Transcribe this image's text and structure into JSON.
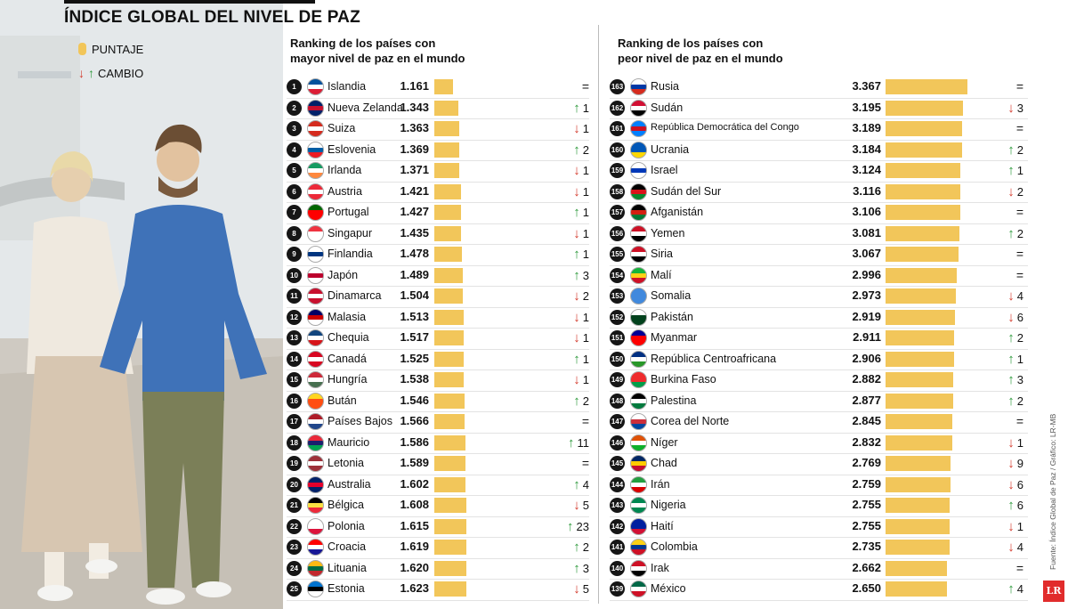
{
  "title": "ÍNDICE GLOBAL DEL NIVEL DE PAZ",
  "legend": {
    "score_label": "PUNTAJE",
    "change_label": "CAMBIO",
    "up_arrow": "↑",
    "down_arrow": "↓"
  },
  "source": "Fuente: Índice Global de Paz / Gráfico: LR-MB",
  "logo": "LR",
  "colors": {
    "bar": "#f2c65a",
    "up": "#2e9a3c",
    "down": "#d33a2c",
    "rank_badge": "#161616"
  },
  "chart_data": [
    {
      "type": "bar",
      "title": "Ranking de los países con mayor nivel de paz en el mundo",
      "rows": [
        {
          "rank": "1",
          "country": "Islandia",
          "score": 1.161,
          "score_text": "1.161",
          "dir": "=",
          "change": "",
          "flag": [
            "#02529C",
            "#ffffff",
            "#DC1E35"
          ]
        },
        {
          "rank": "2",
          "country": "Nueva Zelanda",
          "score": 1.343,
          "score_text": "1.343",
          "dir": "up",
          "change": "1",
          "flag": [
            "#012169",
            "#C8102E",
            "#012169"
          ]
        },
        {
          "rank": "3",
          "country": "Suiza",
          "score": 1.363,
          "score_text": "1.363",
          "dir": "down",
          "change": "1",
          "flag": [
            "#D52B1E",
            "#ffffff",
            "#D52B1E"
          ]
        },
        {
          "rank": "4",
          "country": "Eslovenia",
          "score": 1.369,
          "score_text": "1.369",
          "dir": "up",
          "change": "2",
          "flag": [
            "#ffffff",
            "#005DA4",
            "#ED1C24"
          ]
        },
        {
          "rank": "5",
          "country": "Irlanda",
          "score": 1.371,
          "score_text": "1.371",
          "dir": "down",
          "change": "1",
          "flag": [
            "#169B62",
            "#ffffff",
            "#FF883E"
          ]
        },
        {
          "rank": "6",
          "country": "Austria",
          "score": 1.421,
          "score_text": "1.421",
          "dir": "down",
          "change": "1",
          "flag": [
            "#ED2939",
            "#ffffff",
            "#ED2939"
          ]
        },
        {
          "rank": "7",
          "country": "Portugal",
          "score": 1.427,
          "score_text": "1.427",
          "dir": "up",
          "change": "1",
          "flag": [
            "#006600",
            "#FF0000",
            "#FF0000"
          ]
        },
        {
          "rank": "8",
          "country": "Singapur",
          "score": 1.435,
          "score_text": "1.435",
          "dir": "down",
          "change": "1",
          "flag": [
            "#EF3340",
            "#ffffff",
            "#ffffff"
          ]
        },
        {
          "rank": "9",
          "country": "Finlandia",
          "score": 1.478,
          "score_text": "1.478",
          "dir": "up",
          "change": "1",
          "flag": [
            "#ffffff",
            "#003580",
            "#ffffff"
          ]
        },
        {
          "rank": "10",
          "country": "Japón",
          "score": 1.489,
          "score_text": "1.489",
          "dir": "up",
          "change": "3",
          "flag": [
            "#ffffff",
            "#BC002D",
            "#ffffff"
          ]
        },
        {
          "rank": "11",
          "country": "Dinamarca",
          "score": 1.504,
          "score_text": "1.504",
          "dir": "down",
          "change": "2",
          "flag": [
            "#C8102E",
            "#ffffff",
            "#C8102E"
          ]
        },
        {
          "rank": "12",
          "country": "Malasia",
          "score": 1.513,
          "score_text": "1.513",
          "dir": "down",
          "change": "1",
          "flag": [
            "#010066",
            "#CC0001",
            "#ffffff"
          ]
        },
        {
          "rank": "13",
          "country": "Chequia",
          "score": 1.517,
          "score_text": "1.517",
          "dir": "down",
          "change": "1",
          "flag": [
            "#11457E",
            "#ffffff",
            "#D7141A"
          ]
        },
        {
          "rank": "14",
          "country": "Canadá",
          "score": 1.525,
          "score_text": "1.525",
          "dir": "up",
          "change": "1",
          "flag": [
            "#D80621",
            "#ffffff",
            "#D80621"
          ]
        },
        {
          "rank": "15",
          "country": "Hungría",
          "score": 1.538,
          "score_text": "1.538",
          "dir": "down",
          "change": "1",
          "flag": [
            "#CE2939",
            "#ffffff",
            "#477050"
          ]
        },
        {
          "rank": "16",
          "country": "Bután",
          "score": 1.546,
          "score_text": "1.546",
          "dir": "up",
          "change": "2",
          "flag": [
            "#FFD520",
            "#FF4E12",
            "#FF4E12"
          ]
        },
        {
          "rank": "17",
          "country": "Países Bajos",
          "score": 1.566,
          "score_text": "1.566",
          "dir": "=",
          "change": "",
          "flag": [
            "#AE1C28",
            "#ffffff",
            "#21468B"
          ]
        },
        {
          "rank": "18",
          "country": "Mauricio",
          "score": 1.586,
          "score_text": "1.586",
          "dir": "up",
          "change": "11",
          "flag": [
            "#EA2839",
            "#1A206D",
            "#00A551"
          ]
        },
        {
          "rank": "19",
          "country": "Letonia",
          "score": 1.589,
          "score_text": "1.589",
          "dir": "=",
          "change": "",
          "flag": [
            "#9E3039",
            "#ffffff",
            "#9E3039"
          ]
        },
        {
          "rank": "20",
          "country": "Australia",
          "score": 1.602,
          "score_text": "1.602",
          "dir": "up",
          "change": "4",
          "flag": [
            "#012169",
            "#E4002B",
            "#012169"
          ]
        },
        {
          "rank": "21",
          "country": "Bélgica",
          "score": 1.608,
          "score_text": "1.608",
          "dir": "down",
          "change": "5",
          "flag": [
            "#000000",
            "#FAE042",
            "#ED2939"
          ]
        },
        {
          "rank": "22",
          "country": "Polonia",
          "score": 1.615,
          "score_text": "1.615",
          "dir": "up",
          "change": "23",
          "flag": [
            "#ffffff",
            "#ffffff",
            "#DC143C"
          ]
        },
        {
          "rank": "23",
          "country": "Croacia",
          "score": 1.619,
          "score_text": "1.619",
          "dir": "up",
          "change": "2",
          "flag": [
            "#FF0000",
            "#ffffff",
            "#171796"
          ]
        },
        {
          "rank": "24",
          "country": "Lituania",
          "score": 1.62,
          "score_text": "1.620",
          "dir": "up",
          "change": "3",
          "flag": [
            "#FDB913",
            "#006A44",
            "#C1272D"
          ]
        },
        {
          "rank": "25",
          "country": "Estonia",
          "score": 1.623,
          "score_text": "1.623",
          "dir": "down",
          "change": "5",
          "flag": [
            "#0072CE",
            "#000000",
            "#ffffff"
          ]
        }
      ]
    },
    {
      "type": "bar",
      "title": "Ranking de los países con peor nivel de paz en el mundo",
      "rows": [
        {
          "rank": "163",
          "country": "Rusia",
          "score": 3.367,
          "score_text": "3.367",
          "dir": "=",
          "change": "",
          "flag": [
            "#ffffff",
            "#0039A6",
            "#D52B1E"
          ]
        },
        {
          "rank": "162",
          "country": "Sudán",
          "score": 3.195,
          "score_text": "3.195",
          "dir": "down",
          "change": "3",
          "flag": [
            "#D21034",
            "#ffffff",
            "#000000"
          ]
        },
        {
          "rank": "161",
          "country": "República Democrática del Congo",
          "score": 3.189,
          "score_text": "3.189",
          "dir": "=",
          "change": "",
          "flag": [
            "#007FFF",
            "#CE1021",
            "#007FFF"
          ]
        },
        {
          "rank": "160",
          "country": "Ucrania",
          "score": 3.184,
          "score_text": "3.184",
          "dir": "up",
          "change": "2",
          "flag": [
            "#0057B7",
            "#0057B7",
            "#FFD700"
          ]
        },
        {
          "rank": "159",
          "country": "Israel",
          "score": 3.124,
          "score_text": "3.124",
          "dir": "up",
          "change": "1",
          "flag": [
            "#ffffff",
            "#0038B8",
            "#ffffff"
          ]
        },
        {
          "rank": "158",
          "country": "Sudán del Sur",
          "score": 3.116,
          "score_text": "3.116",
          "dir": "down",
          "change": "2",
          "flag": [
            "#000000",
            "#DA121A",
            "#078930"
          ]
        },
        {
          "rank": "157",
          "country": "Afganistán",
          "score": 3.106,
          "score_text": "3.106",
          "dir": "=",
          "change": "",
          "flag": [
            "#000000",
            "#D32011",
            "#007A36"
          ]
        },
        {
          "rank": "156",
          "country": "Yemen",
          "score": 3.081,
          "score_text": "3.081",
          "dir": "up",
          "change": "2",
          "flag": [
            "#CE1126",
            "#ffffff",
            "#000000"
          ]
        },
        {
          "rank": "155",
          "country": "Siria",
          "score": 3.067,
          "score_text": "3.067",
          "dir": "=",
          "change": "",
          "flag": [
            "#CE1126",
            "#ffffff",
            "#000000"
          ]
        },
        {
          "rank": "154",
          "country": "Malí",
          "score": 2.996,
          "score_text": "2.996",
          "dir": "=",
          "change": "",
          "flag": [
            "#14B53A",
            "#FCD116",
            "#CE1126"
          ]
        },
        {
          "rank": "153",
          "country": "Somalia",
          "score": 2.973,
          "score_text": "2.973",
          "dir": "down",
          "change": "4",
          "flag": [
            "#4189DD",
            "#4189DD",
            "#4189DD"
          ]
        },
        {
          "rank": "152",
          "country": "Pakistán",
          "score": 2.919,
          "score_text": "2.919",
          "dir": "down",
          "change": "6",
          "flag": [
            "#ffffff",
            "#01411C",
            "#01411C"
          ]
        },
        {
          "rank": "151",
          "country": "Myanmar",
          "score": 2.911,
          "score_text": "2.911",
          "dir": "up",
          "change": "2",
          "flag": [
            "#000095",
            "#FE0000",
            "#FE0000"
          ]
        },
        {
          "rank": "150",
          "country": "República Centroafricana",
          "score": 2.906,
          "score_text": "2.906",
          "dir": "up",
          "change": "1",
          "flag": [
            "#003082",
            "#ffffff",
            "#289728"
          ]
        },
        {
          "rank": "149",
          "country": "Burkina Faso",
          "score": 2.882,
          "score_text": "2.882",
          "dir": "up",
          "change": "3",
          "flag": [
            "#EF2B2D",
            "#EF2B2D",
            "#009E49"
          ]
        },
        {
          "rank": "148",
          "country": "Palestina",
          "score": 2.877,
          "score_text": "2.877",
          "dir": "up",
          "change": "2",
          "flag": [
            "#000000",
            "#ffffff",
            "#007A3D"
          ]
        },
        {
          "rank": "147",
          "country": "Corea del Norte",
          "score": 2.845,
          "score_text": "2.845",
          "dir": "=",
          "change": "",
          "flag": [
            "#ffffff",
            "#CD2E3A",
            "#0047A0"
          ]
        },
        {
          "rank": "146",
          "country": "Níger",
          "score": 2.832,
          "score_text": "2.832",
          "dir": "down",
          "change": "1",
          "flag": [
            "#E05206",
            "#ffffff",
            "#0DB02B"
          ]
        },
        {
          "rank": "145",
          "country": "Chad",
          "score": 2.769,
          "score_text": "2.769",
          "dir": "down",
          "change": "9",
          "flag": [
            "#002664",
            "#FECB00",
            "#C60C30"
          ]
        },
        {
          "rank": "144",
          "country": "Irán",
          "score": 2.759,
          "score_text": "2.759",
          "dir": "down",
          "change": "6",
          "flag": [
            "#239F40",
            "#ffffff",
            "#DA0000"
          ]
        },
        {
          "rank": "143",
          "country": "Nigeria",
          "score": 2.755,
          "score_text": "2.755",
          "dir": "up",
          "change": "6",
          "flag": [
            "#008751",
            "#ffffff",
            "#008751"
          ]
        },
        {
          "rank": "142",
          "country": "Haití",
          "score": 2.755,
          "score_text": "2.755",
          "dir": "down",
          "change": "1",
          "flag": [
            "#00209F",
            "#00209F",
            "#D21034"
          ]
        },
        {
          "rank": "141",
          "country": "Colombia",
          "score": 2.735,
          "score_text": "2.735",
          "dir": "down",
          "change": "4",
          "flag": [
            "#FCD116",
            "#003893",
            "#CE1126"
          ]
        },
        {
          "rank": "140",
          "country": "Irak",
          "score": 2.662,
          "score_text": "2.662",
          "dir": "=",
          "change": "",
          "flag": [
            "#CE1126",
            "#ffffff",
            "#000000"
          ]
        },
        {
          "rank": "139",
          "country": "México",
          "score": 2.65,
          "score_text": "2.650",
          "dir": "up",
          "change": "4",
          "flag": [
            "#006847",
            "#ffffff",
            "#CE1126"
          ]
        }
      ]
    }
  ]
}
